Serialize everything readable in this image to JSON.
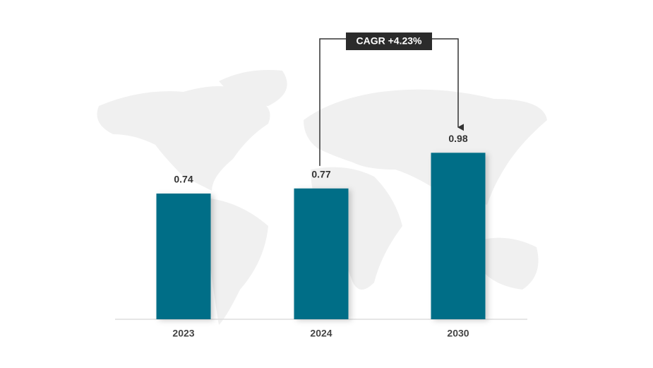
{
  "chart_data": {
    "type": "bar",
    "categories": [
      "2023",
      "2024",
      "2030"
    ],
    "values": [
      0.74,
      0.77,
      0.98
    ],
    "color": "#046e87",
    "annotation": "CAGR +4.23%"
  }
}
